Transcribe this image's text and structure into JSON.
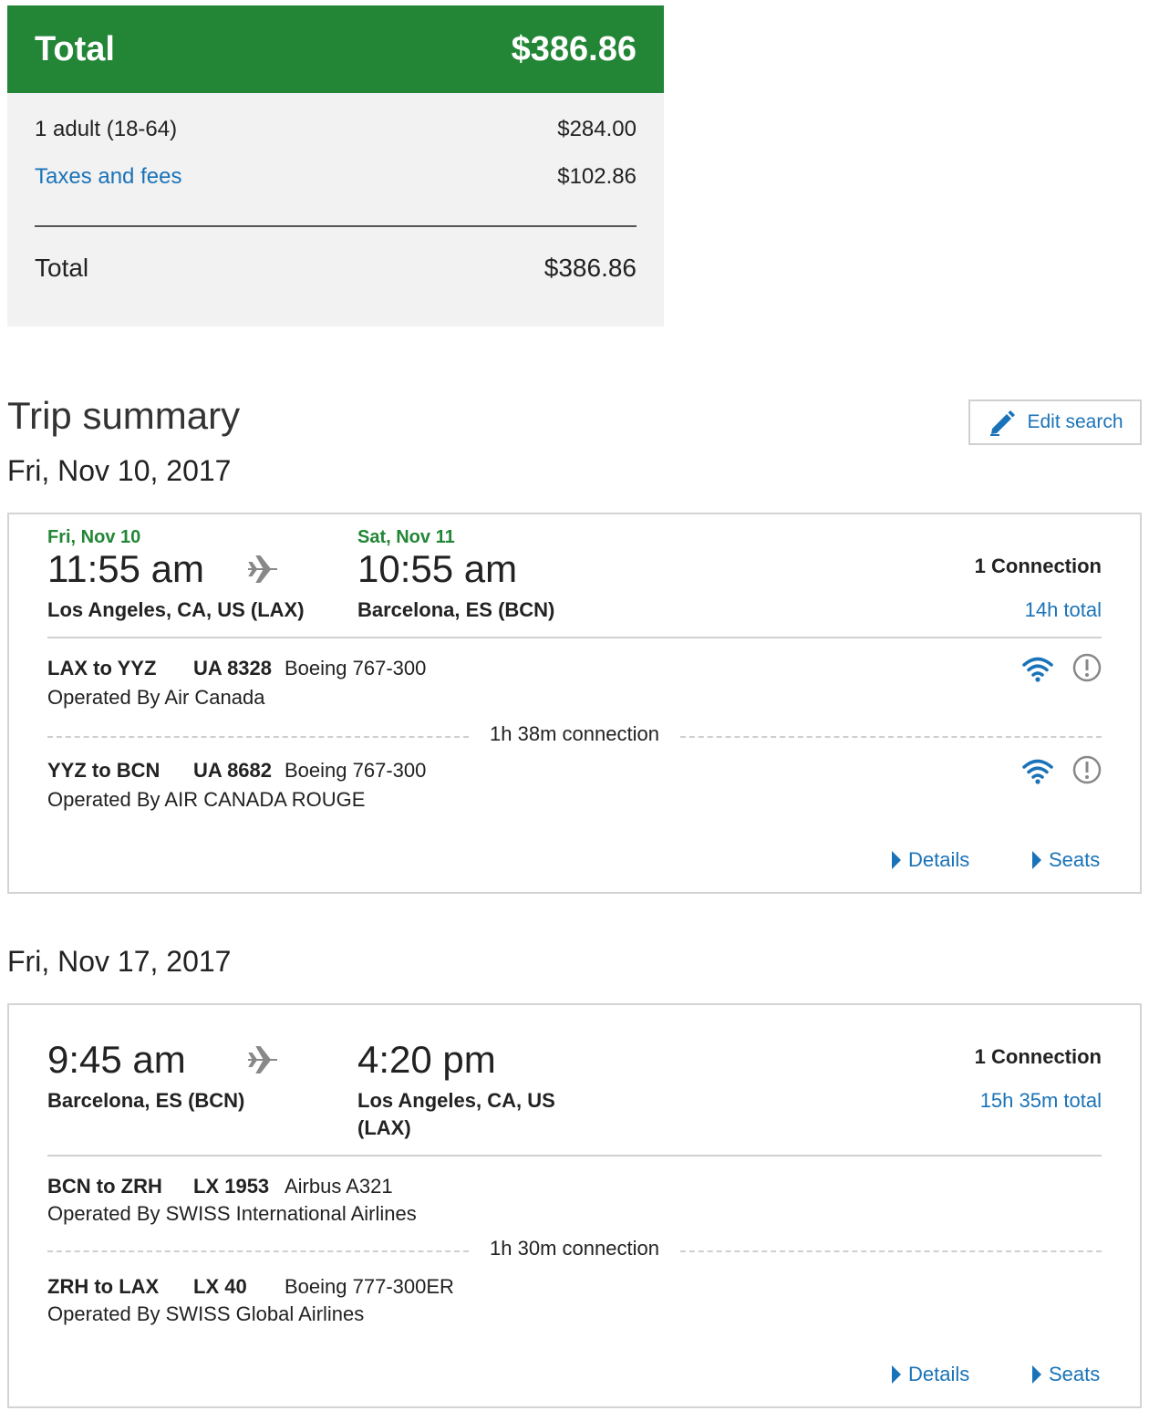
{
  "price_summary": {
    "header_label": "Total",
    "header_amount": "$386.86",
    "lines": [
      {
        "label": "1 adult (18-64)",
        "amount": "$284.00"
      },
      {
        "label": "Taxes and fees",
        "amount": "$102.86"
      }
    ],
    "total_label": "Total",
    "total_amount": "$386.86"
  },
  "trip": {
    "title": "Trip summary",
    "edit_label": "Edit search",
    "accent_color": "#228636",
    "link_color": "#1a73b8",
    "outbound": {
      "date": "Fri, Nov 10, 2017",
      "depart_day": "Fri, Nov 10",
      "depart_time": "11:55 am",
      "depart_city": "Los Angeles, CA, US (LAX)",
      "arrive_day": "Sat, Nov 11",
      "arrive_time": "10:55 am",
      "arrive_city": "Barcelona, ES (BCN)",
      "connections": "1 Connection",
      "duration": "14h total",
      "segments": [
        {
          "route": "LAX to YYZ",
          "flight": "UA 8328",
          "aircraft": "Boeing 767-300",
          "operator": "Operated By Air Canada"
        },
        {
          "route": "YYZ to BCN",
          "flight": "UA 8682",
          "aircraft": "Boeing 767-300",
          "operator": "Operated By AIR CANADA ROUGE"
        }
      ],
      "layover": "1h 38m connection",
      "details_label": "Details",
      "seats_label": "Seats"
    },
    "return": {
      "date": "Fri, Nov 17, 2017",
      "depart_time": "9:45 am",
      "depart_city": "Barcelona, ES (BCN)",
      "arrive_time": "4:20 pm",
      "arrive_city_line1": "Los Angeles, CA, US",
      "arrive_city_line2": "(LAX)",
      "connections": "1 Connection",
      "duration": "15h 35m total",
      "segments": [
        {
          "route": "BCN to ZRH",
          "flight": "LX 1953",
          "aircraft": "Airbus A321",
          "operator": "Operated By SWISS International Airlines"
        },
        {
          "route": "ZRH to LAX",
          "flight": "LX 40",
          "aircraft": "Boeing 777-300ER",
          "operator": "Operated By SWISS Global Airlines"
        }
      ],
      "layover": "1h 30m connection",
      "details_label": "Details",
      "seats_label": "Seats"
    },
    "icons": {
      "plane": "airplane-icon",
      "wifi": "wifi-icon",
      "info": "info-icon",
      "edit": "pencil-icon"
    }
  }
}
